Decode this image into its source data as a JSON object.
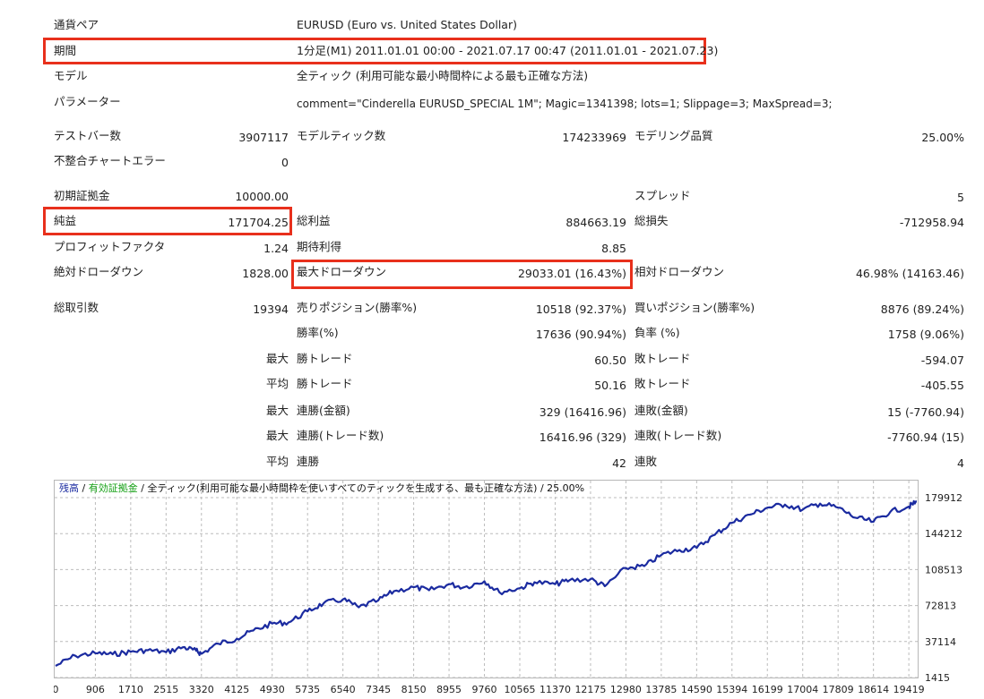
{
  "report": {
    "symbol": {
      "label": "通貨ペア",
      "value": "EURUSD (Euro vs. United States Dollar)"
    },
    "period": {
      "label": "期間",
      "value": "1分足(M1) 2011.01.01 00:00 - 2021.07.17 00:47 (2011.01.01 - 2021.07.23)"
    },
    "model": {
      "label": "モデル",
      "value": "全ティック (利用可能な最小時間枠による最も正確な方法)"
    },
    "parameters": {
      "label": "パラメーター",
      "value": "comment=\"Cinderella EURUSD_SPECIAL 1M\"; Magic=1341398; lots=1; Slippage=3; MaxSpread=3;"
    },
    "bars_tested": {
      "label": "テストバー数",
      "value": "3907117"
    },
    "ticks_modelled": {
      "label": "モデルティック数",
      "value": "174233969"
    },
    "modelling_quality": {
      "label": "モデリング品質",
      "value": "25.00%"
    },
    "mismatched_errors": {
      "label": "不整合チャートエラー",
      "value": "0"
    },
    "initial_deposit": {
      "label": "初期証拠金",
      "value": "10000.00"
    },
    "spread": {
      "label": "スプレッド",
      "value": "5"
    },
    "net_profit": {
      "label": "純益",
      "value": "171704.25"
    },
    "gross_profit": {
      "label": "総利益",
      "value": "884663.19"
    },
    "gross_loss": {
      "label": "総損失",
      "value": "-712958.94"
    },
    "profit_factor": {
      "label": "プロフィットファクタ",
      "value": "1.24"
    },
    "expected_payoff": {
      "label": "期待利得",
      "value": "8.85"
    },
    "absolute_drawdown": {
      "label": "絶対ドローダウン",
      "value": "1828.00"
    },
    "maximal_drawdown": {
      "label": "最大ドローダウン",
      "value": "29033.01 (16.43%)"
    },
    "relative_drawdown": {
      "label": "相対ドローダウン",
      "value": "46.98% (14163.46)"
    },
    "total_trades": {
      "label": "総取引数",
      "value": "19394"
    },
    "short_positions": {
      "label": "売りポジション(勝率%)",
      "value": "10518 (92.37%)"
    },
    "long_positions": {
      "label": "買いポジション(勝率%)",
      "value": "8876 (89.24%)"
    },
    "profit_trades": {
      "label": "勝率(%)",
      "value": "17636 (90.94%)"
    },
    "loss_trades": {
      "label": "負率 (%)",
      "value": "1758 (9.06%)"
    },
    "largest": {
      "prefix": "最大",
      "win_label": "勝トレード",
      "win_value": "60.50",
      "loss_label": "敗トレード",
      "loss_value": "-594.07"
    },
    "average": {
      "prefix": "平均",
      "win_label": "勝トレード",
      "win_value": "50.16",
      "loss_label": "敗トレード",
      "loss_value": "-405.55"
    },
    "max_consecutive": {
      "prefix": "最大",
      "win_label": "連勝(金額)",
      "win_value": "329 (16416.96)",
      "loss_label": "連敗(金額)",
      "loss_value": "15 (-7760.94)"
    },
    "max_consecutive_count": {
      "prefix": "最大",
      "win_label": "連勝(トレード数)",
      "win_value": "16416.96 (329)",
      "loss_label": "連敗(トレード数)",
      "loss_value": "-7760.94 (15)"
    },
    "avg_consecutive": {
      "prefix": "平均",
      "win_label": "連勝",
      "win_value": "42",
      "loss_label": "連敗",
      "loss_value": "4"
    }
  },
  "chart_data": {
    "type": "line",
    "legend": {
      "balance": "残高",
      "sep1": " / ",
      "equity": "有効証拠金",
      "sep2": " / ",
      "model": "全ティック(利用可能な最小時間枠を使いすべてのティックを生成する、最も正確な方法)",
      "sep3": " / ",
      "quality": "25.00%"
    },
    "x_ticks": [
      0,
      906,
      1710,
      2515,
      3320,
      4125,
      4930,
      5735,
      6540,
      7345,
      8150,
      8955,
      9760,
      10565,
      11370,
      12175,
      12980,
      13785,
      14590,
      15394,
      16199,
      17004,
      17809,
      18614,
      19419
    ],
    "y_ticks": [
      1415,
      37114,
      72813,
      108513,
      144212,
      179912
    ],
    "xlim": [
      0,
      19600
    ],
    "ylim": [
      1415,
      179912
    ],
    "series": [
      {
        "color": "#1b2ba0",
        "x": [
          0,
          450,
          906,
          1300,
          1710,
          2100,
          2515,
          2900,
          3200,
          3320,
          3700,
          4125,
          4500,
          4930,
          5300,
          5735,
          6100,
          6540,
          6900,
          7345,
          7700,
          8150,
          8500,
          8955,
          9300,
          9760,
          10100,
          10565,
          10900,
          11370,
          11700,
          12175,
          12500,
          12980,
          13400,
          13785,
          14200,
          14590,
          15000,
          15394,
          15800,
          16199,
          16600,
          17004,
          17400,
          17809,
          18200,
          18614,
          19000,
          19419,
          19600
        ],
        "values": [
          13000,
          23000,
          25500,
          24500,
          27000,
          28500,
          26500,
          31500,
          28000,
          25000,
          35000,
          40000,
          48000,
          55000,
          56000,
          67000,
          75000,
          79000,
          71000,
          78000,
          87000,
          91000,
          88000,
          94000,
          91000,
          97000,
          86000,
          90000,
          96000,
          94000,
          98000,
          99000,
          92000,
          110000,
          112000,
          123000,
          128000,
          130000,
          143000,
          155000,
          163000,
          170000,
          173000,
          168000,
          174000,
          170000,
          160000,
          156000,
          166000,
          171000,
          176000
        ]
      }
    ]
  }
}
